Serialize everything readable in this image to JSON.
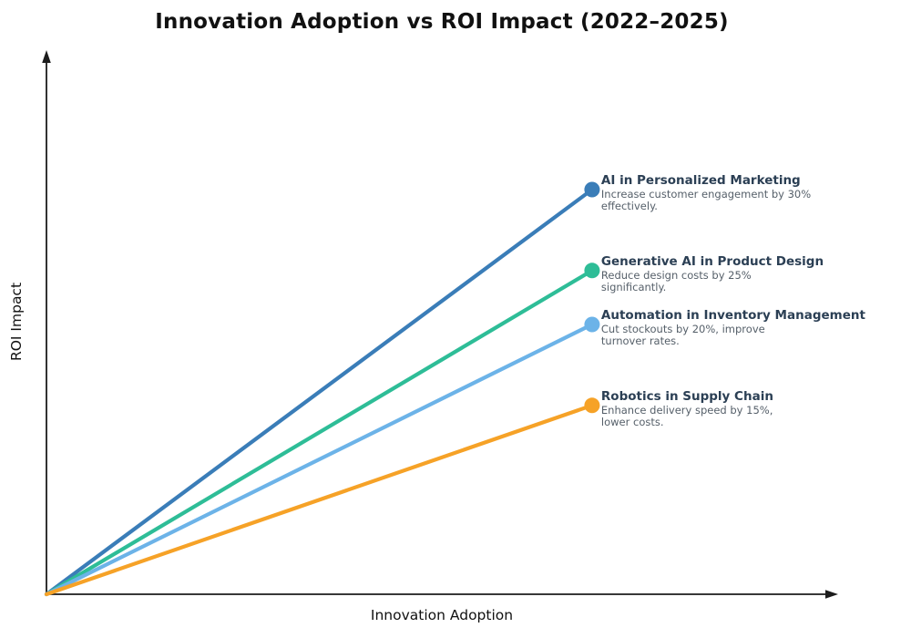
{
  "page": {
    "background": "#ffffff"
  },
  "chart_data": {
    "type": "line",
    "title": "Innovation Adoption vs ROI Impact (2022–2025)",
    "xlabel": "Innovation Adoption",
    "ylabel": "ROI Impact",
    "axes": {
      "style": "arrow-axes",
      "ticks": false,
      "grid": false,
      "color": "#1c1c1c",
      "x_range": [
        0,
        1
      ],
      "y_range": [
        0,
        1
      ]
    },
    "legend_position": "none",
    "annotation_colors": {
      "title": "#2b3f54",
      "body": "#555f69"
    },
    "series": [
      {
        "name": "AI in Personalized Marketing",
        "annotation": "Increase customer engagement by 30%\neffectively.",
        "color": "#3a7db8",
        "x": [
          0,
          0.69
        ],
        "y": [
          0,
          0.75
        ]
      },
      {
        "name": "Generative AI in Product Design",
        "annotation": "Reduce design costs by 25%\nsignificantly.",
        "color": "#2ebd97",
        "x": [
          0,
          0.69
        ],
        "y": [
          0,
          0.6
        ]
      },
      {
        "name": "Automation in Inventory Management",
        "annotation": "Cut stockouts by 20%, improve\nturnover rates.",
        "color": "#6cb3e8",
        "x": [
          0,
          0.69
        ],
        "y": [
          0,
          0.5
        ]
      },
      {
        "name": "Robotics in Supply Chain",
        "annotation": "Enhance delivery speed by 15%,\nlower costs.",
        "color": "#f6a227",
        "x": [
          0,
          0.69
        ],
        "y": [
          0,
          0.35
        ]
      }
    ]
  }
}
